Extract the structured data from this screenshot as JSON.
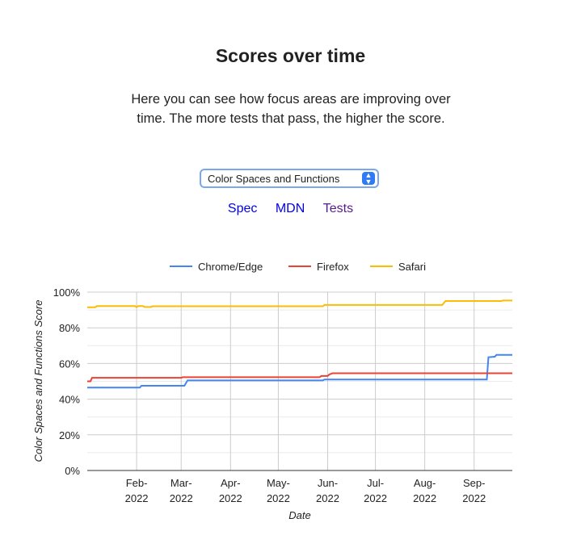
{
  "title": "Scores over time",
  "description": "Here you can see how focus areas are improving over time. The more tests that pass, the higher the score.",
  "select": {
    "value": "Color Spaces and Functions"
  },
  "links": [
    {
      "label": "Spec",
      "color": "#0000ee"
    },
    {
      "label": "MDN",
      "color": "#0000ee"
    },
    {
      "label": "Tests",
      "color": "#551a8b"
    }
  ],
  "chart_data": {
    "type": "line",
    "xlabel": "Date",
    "ylabel": "Color Spaces and Functions Score",
    "xlim": [
      "2022-01-01",
      "2022-09-25"
    ],
    "ylim": [
      0,
      100
    ],
    "yticks": [
      "0%",
      "20%",
      "40%",
      "60%",
      "80%",
      "100%"
    ],
    "xticks": [
      {
        "date": "2022-02-01",
        "label": [
          "Feb-",
          "2022"
        ]
      },
      {
        "date": "2022-03-01",
        "label": [
          "Mar-",
          "2022"
        ]
      },
      {
        "date": "2022-04-01",
        "label": [
          "Apr-",
          "2022"
        ]
      },
      {
        "date": "2022-05-01",
        "label": [
          "May-",
          "2022"
        ]
      },
      {
        "date": "2022-06-01",
        "label": [
          "Jun-",
          "2022"
        ]
      },
      {
        "date": "2022-07-01",
        "label": [
          "Jul-",
          "2022"
        ]
      },
      {
        "date": "2022-08-01",
        "label": [
          "Aug-",
          "2022"
        ]
      },
      {
        "date": "2022-09-01",
        "label": [
          "Sep-",
          "2022"
        ]
      }
    ],
    "grid": true,
    "legend": "top",
    "series": [
      {
        "name": "Chrome/Edge",
        "color": "#4285f4",
        "points": [
          [
            "2022-01-01",
            46.5
          ],
          [
            "2022-02-03",
            46.5
          ],
          [
            "2022-02-04",
            47.5
          ],
          [
            "2022-03-03",
            47.5
          ],
          [
            "2022-03-05",
            50.5
          ],
          [
            "2022-05-29",
            50.5
          ],
          [
            "2022-05-30",
            51
          ],
          [
            "2022-09-09",
            51
          ],
          [
            "2022-09-10",
            63.5
          ],
          [
            "2022-09-14",
            63.8
          ],
          [
            "2022-09-15",
            64.8
          ],
          [
            "2022-09-25",
            64.8
          ]
        ]
      },
      {
        "name": "Firefox",
        "color": "#ea4335",
        "points": [
          [
            "2022-01-01",
            50
          ],
          [
            "2022-01-03",
            50
          ],
          [
            "2022-01-04",
            52
          ],
          [
            "2022-03-01",
            52
          ],
          [
            "2022-03-02",
            52.3
          ],
          [
            "2022-05-27",
            52.3
          ],
          [
            "2022-05-28",
            53
          ],
          [
            "2022-06-01",
            53
          ],
          [
            "2022-06-02",
            53.8
          ],
          [
            "2022-06-04",
            54.5
          ],
          [
            "2022-09-25",
            54.5
          ]
        ]
      },
      {
        "name": "Safari",
        "color": "#fbbc04",
        "points": [
          [
            "2022-01-01",
            91.5
          ],
          [
            "2022-01-06",
            91.5
          ],
          [
            "2022-01-07",
            92.2
          ],
          [
            "2022-01-31",
            92.2
          ],
          [
            "2022-02-01",
            91.6
          ],
          [
            "2022-02-02",
            92.2
          ],
          [
            "2022-02-05",
            92.2
          ],
          [
            "2022-02-06",
            91.7
          ],
          [
            "2022-02-10",
            91.7
          ],
          [
            "2022-02-11",
            92.1
          ],
          [
            "2022-05-29",
            92.1
          ],
          [
            "2022-05-30",
            92.8
          ],
          [
            "2022-08-12",
            92.8
          ],
          [
            "2022-08-14",
            95
          ],
          [
            "2022-09-18",
            95
          ],
          [
            "2022-09-19",
            95.3
          ],
          [
            "2022-09-25",
            95.3
          ]
        ]
      }
    ]
  }
}
